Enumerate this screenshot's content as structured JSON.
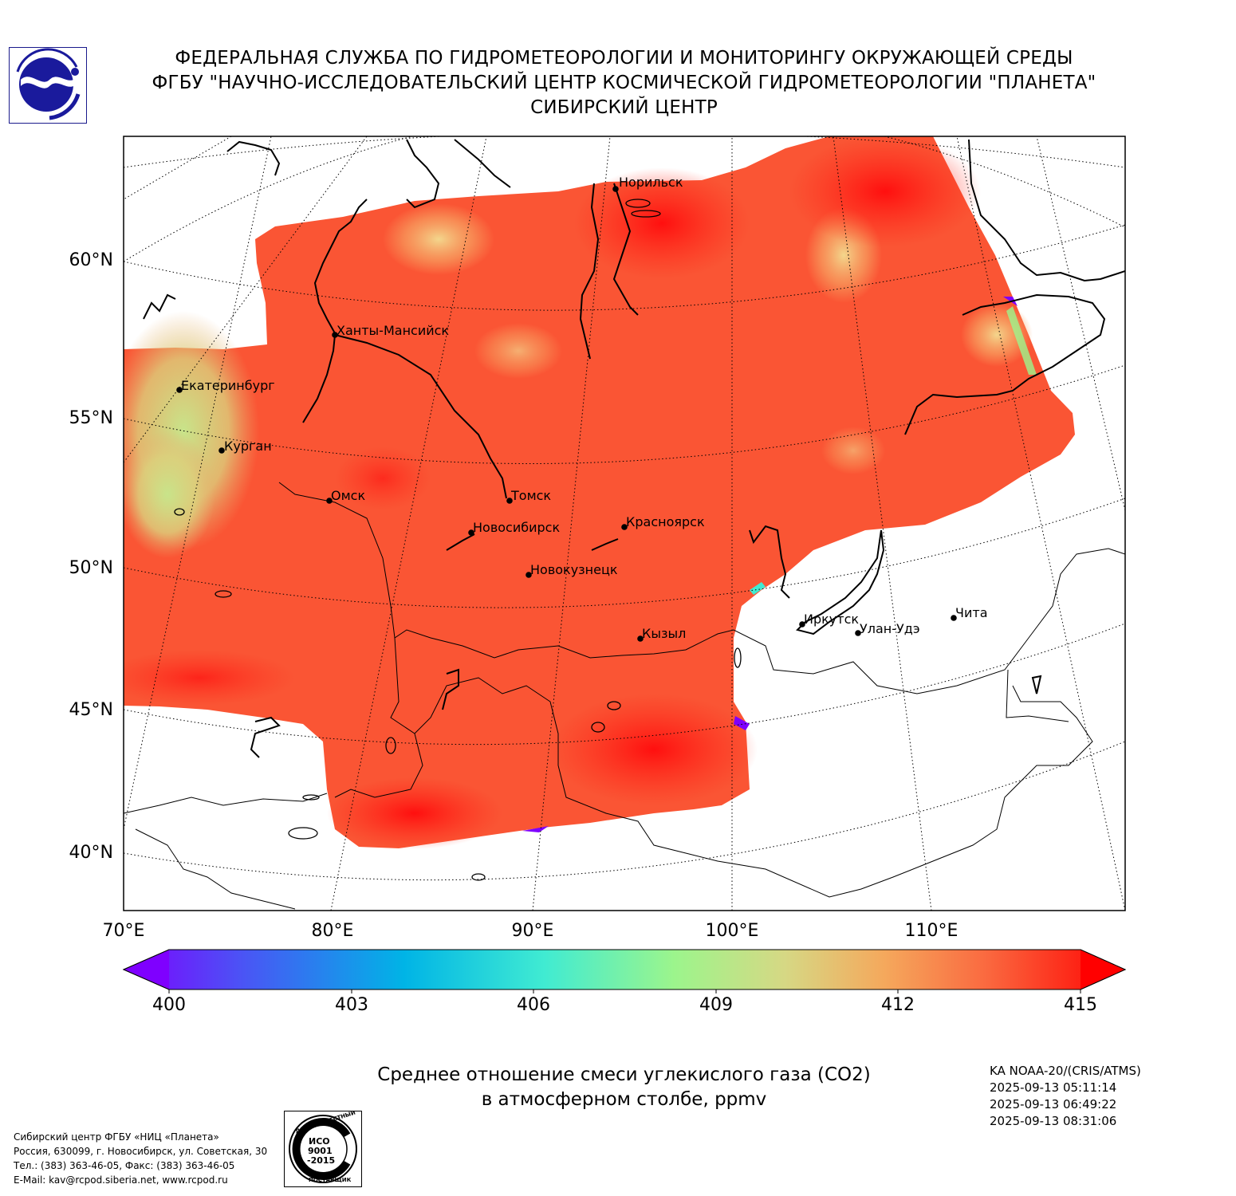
{
  "header": {
    "line1": "ФЕДЕРАЛЬНАЯ СЛУЖБА ПО ГИДРОМЕТЕОРОЛОГИИ И МОНИТОРИНГУ ОКРУЖАЮЩЕЙ СРЕДЫ",
    "line2": "ФГБУ \"НАУЧНО-ИССЛЕДОВАТЕЛЬСКИЙ ЦЕНТР КОСМИЧЕСКОЙ ГИДРОМЕТЕОРОЛОГИИ \"ПЛАНЕТА\"",
    "line3": "СИБИРСКИЙ ЦЕНТР"
  },
  "map": {
    "lat_labels": [
      "60°N",
      "55°N",
      "50°N",
      "45°N",
      "40°N"
    ],
    "lon_labels": [
      "70°E",
      "80°E",
      "90°E",
      "100°E",
      "110°E"
    ],
    "cities": [
      {
        "name": "Норильск"
      },
      {
        "name": "Ханты-Мансийск"
      },
      {
        "name": "Екатеринбург"
      },
      {
        "name": "Курган"
      },
      {
        "name": "Омск"
      },
      {
        "name": "Томск"
      },
      {
        "name": "Новосибирск"
      },
      {
        "name": "Красноярск"
      },
      {
        "name": "Новокузнецк"
      },
      {
        "name": "Кызыл"
      },
      {
        "name": "Иркутск"
      },
      {
        "name": "Улан-Удэ"
      },
      {
        "name": "Чита"
      }
    ],
    "colors": {
      "low": "#7f00ff",
      "mid_low": "#00b4e6",
      "mid": "#9cf58c",
      "mid_high": "#f5a85c",
      "high": "#ff0000"
    }
  },
  "colorbar": {
    "ticks": [
      "400",
      "403",
      "406",
      "409",
      "412",
      "415"
    ]
  },
  "title": {
    "line1": "Среднее отношение смеси углекислого газа (CO2)",
    "line2": "в атмосферном столбе, ppmv"
  },
  "satellite": {
    "name": "KA NOAA-20/(CRIS/ATMS)",
    "times": [
      "2025-09-13 05:11:14",
      "2025-09-13 06:49:22",
      "2025-09-13 08:31:06"
    ]
  },
  "contact": {
    "line1": "Сибирский центр ФГБУ «НИЦ «Планета»",
    "line2": "Россия, 630099, г. Новосибирск, ул. Советская, 30",
    "line3": "Тел.: (383) 363-46-05, Факс: (383) 363-46-05",
    "line4": "E-Mail: kav@rcpod.siberia.net, www.rcpod.ru"
  },
  "iso_badge": {
    "top_text": "ДОБРОСОВЕСТНЫЙ",
    "center_text": "ИСО 9001 -2015",
    "bottom_text": "ПОСТАВЩИК"
  }
}
